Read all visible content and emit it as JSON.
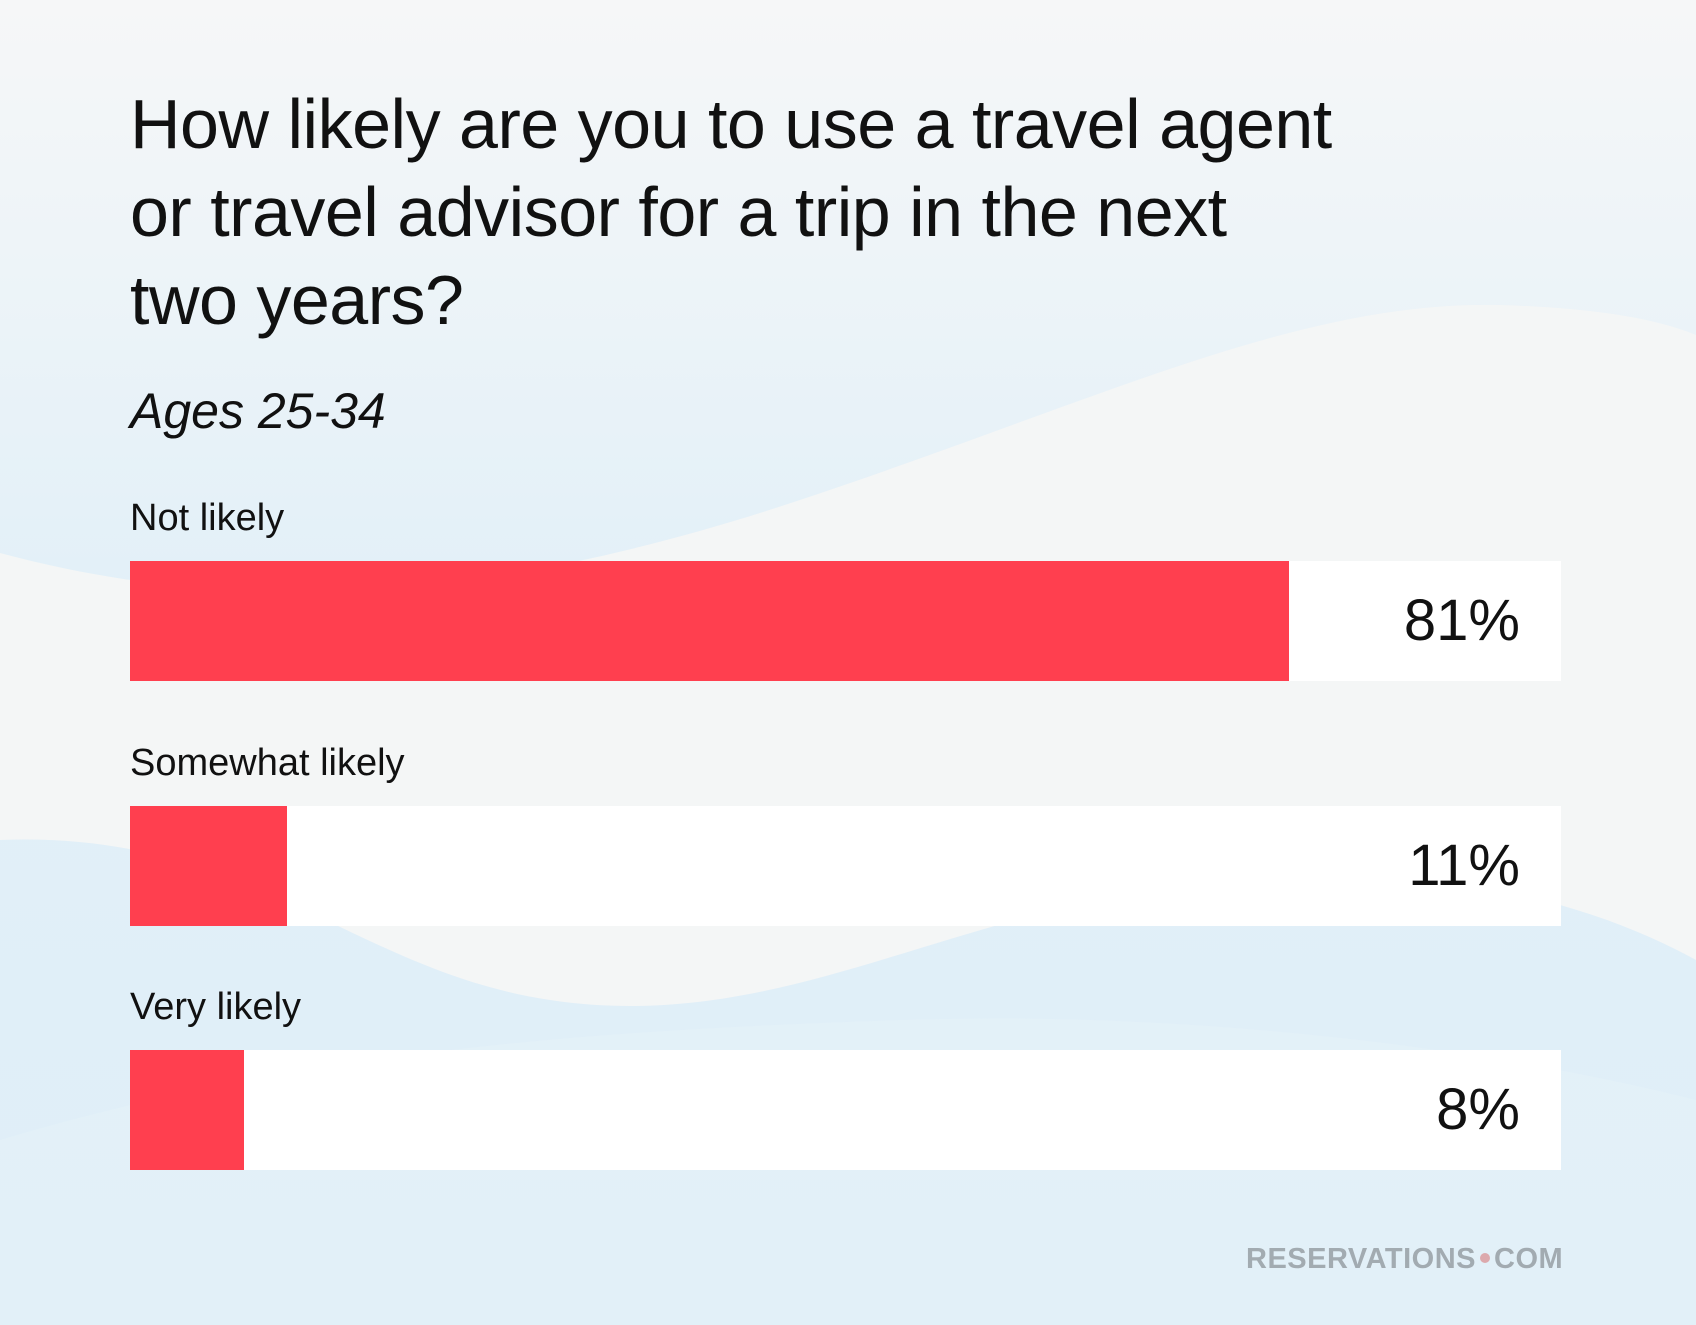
{
  "colors": {
    "bar": "#ff3f4f",
    "track": "#ffffff",
    "logo_dot": "#dca9ad"
  },
  "logo": {
    "left": "RESERVATIONS",
    "right": "COM"
  },
  "chart_data": {
    "type": "bar",
    "orientation": "horizontal",
    "title": "How likely are you to use a travel agent or travel advisor for a trip in the next two years?",
    "title_lines": [
      "How likely are you to use a travel agent",
      "or travel advisor for a trip in the next",
      "two years?"
    ],
    "subtitle": "Ages 25-34",
    "categories": [
      "Not likely",
      "Somewhat likely",
      "Very likely"
    ],
    "values": [
      81,
      11,
      8
    ],
    "value_labels": [
      "81%",
      "11%",
      "8%"
    ],
    "xlim": [
      0,
      100
    ],
    "unit": "%"
  }
}
